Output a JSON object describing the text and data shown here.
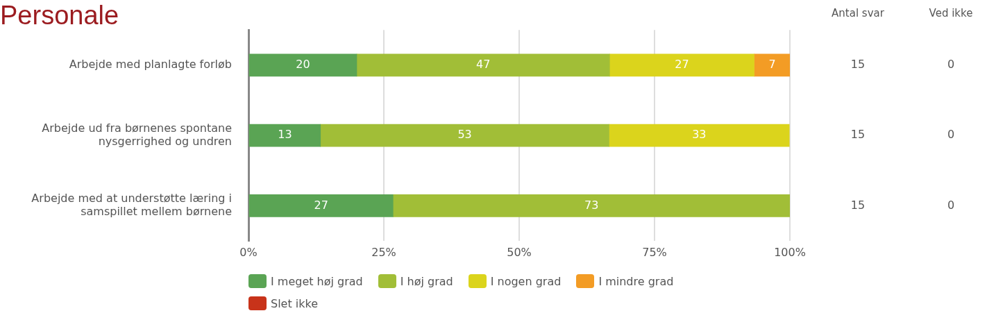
{
  "chart_data": {
    "type": "bar",
    "orientation": "horizontal",
    "stacked": true,
    "title": "Personale",
    "categories": [
      "Arbejde med planlagte forløb",
      "Arbejde ud fra børnenes spontane nysgerrighed og undren",
      "Arbejde med at understøtte læring i samspillet mellem børnene"
    ],
    "series": [
      {
        "name": "I meget høj grad",
        "color": "#5aa454",
        "values": [
          20,
          13.3,
          26.7
        ],
        "value_labels": [
          "20",
          "13",
          "27"
        ]
      },
      {
        "name": "I høj grad",
        "color": "#a1be37",
        "values": [
          46.7,
          53.3,
          73.3
        ],
        "value_labels": [
          "47",
          "53",
          "73"
        ]
      },
      {
        "name": "I nogen grad",
        "color": "#dbd41c",
        "values": [
          26.7,
          33.3,
          null
        ],
        "value_labels": [
          "27",
          "33",
          null
        ]
      },
      {
        "name": "I mindre grad",
        "color": "#f39c25",
        "values": [
          6.7,
          null,
          null
        ],
        "value_labels": [
          "7",
          null,
          null
        ]
      },
      {
        "name": "Slet ikke",
        "color": "#c8331a",
        "values": [
          null,
          null,
          null
        ],
        "value_labels": [
          null,
          null,
          null
        ]
      }
    ],
    "xlim": [
      0,
      100
    ],
    "xticks": [
      {
        "value": 0,
        "label": "0%"
      },
      {
        "value": 25,
        "label": "25%"
      },
      {
        "value": 50,
        "label": "50%"
      },
      {
        "value": 75,
        "label": "75%"
      },
      {
        "value": 100,
        "label": "100%"
      }
    ],
    "grid": "x",
    "legend": "bottom",
    "annotations": [
      "Antal svar",
      "Ved ikke",
      "15",
      "0",
      "15",
      "0",
      "15",
      "0"
    ]
  }
}
